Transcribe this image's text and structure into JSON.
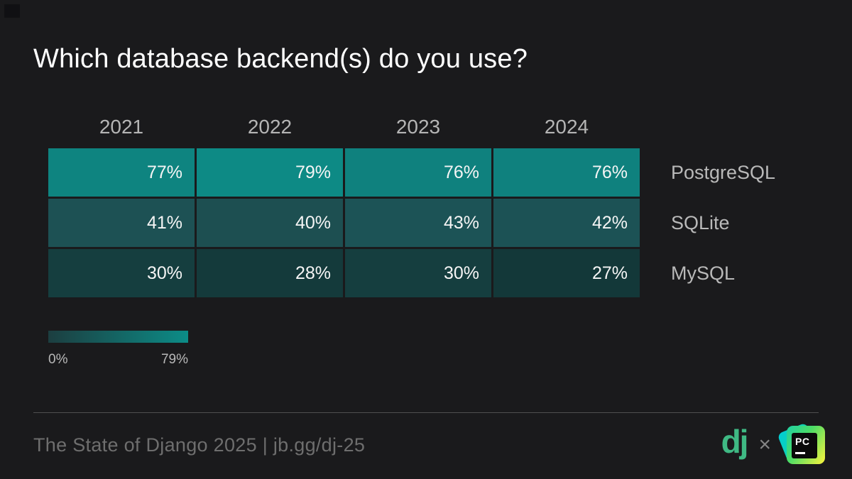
{
  "title": "Which database backend(s) do you use?",
  "chart_data": {
    "type": "heatmap",
    "title": "Which database backend(s) do you use?",
    "columns": [
      "2021",
      "2022",
      "2023",
      "2024"
    ],
    "rows": [
      {
        "label": "PostgreSQL",
        "values": [
          77,
          79,
          76,
          76
        ],
        "colors": [
          "#0e8480",
          "#0d8a85",
          "#0f817e",
          "#0f817e"
        ]
      },
      {
        "label": "SQLite",
        "values": [
          41,
          40,
          43,
          42
        ],
        "colors": [
          "#1d5154",
          "#1d4f51",
          "#1c5356",
          "#1c5255"
        ]
      },
      {
        "label": "MySQL",
        "values": [
          30,
          28,
          30,
          27
        ],
        "colors": [
          "#153e3f",
          "#143a3b",
          "#153e3f",
          "#133839"
        ]
      }
    ],
    "value_suffix": "%",
    "value_min": 0,
    "value_max": 79,
    "legend": {
      "min_label": "0%",
      "max_label": "79%",
      "gradient_from": "#1c3e40",
      "gradient_to": "#0c8c87"
    },
    "legend_position": "bottom-left",
    "row_labels_position": "right"
  },
  "footer": {
    "text": "The State of Django 2025 | jb.gg/dj-25",
    "django_logo_text": "dj",
    "separator": "×",
    "pycharm_logo_text": "PC"
  },
  "colors": {
    "background": "#1a1a1c",
    "title_text": "#ffffff",
    "header_text": "#b5b5b5",
    "row_label_text": "#b9b9b9",
    "cell_text": "#f5f5f5",
    "footer_text": "#6e6e6e",
    "divider": "#505050",
    "django_green": "#3fb984",
    "heatmap_bright": "#0d8a85",
    "heatmap_dark": "#133839"
  }
}
